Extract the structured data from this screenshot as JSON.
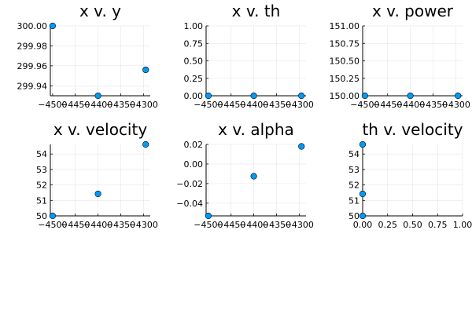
{
  "chart_data": [
    {
      "type": "scatter",
      "title": "x v. y",
      "x": [
        -4500,
        -4400,
        -4295
      ],
      "y": [
        300.0,
        299.93,
        299.956
      ],
      "xlim": [
        -4505,
        -4285
      ],
      "ylim": [
        299.93,
        300.0
      ],
      "xticks": [
        -4500,
        -4450,
        -4400,
        -4350,
        -4300
      ],
      "xtick_labels": [
        "−4500",
        "−4450",
        "−4400",
        "−4350",
        "−4300"
      ],
      "yticks": [
        299.94,
        299.96,
        299.98,
        300.0
      ],
      "ytick_labels": [
        "299.94",
        "299.96",
        "299.98",
        "300.00"
      ],
      "grid": true,
      "marker_color": "#009AFA"
    },
    {
      "type": "scatter",
      "title": "x v. th",
      "x": [
        -4500,
        -4400,
        -4295
      ],
      "y": [
        0,
        0,
        0
      ],
      "xlim": [
        -4505,
        -4285
      ],
      "ylim": [
        0,
        1.0
      ],
      "xticks": [
        -4500,
        -4450,
        -4400,
        -4350,
        -4300
      ],
      "xtick_labels": [
        "−4500",
        "−4450",
        "−4400",
        "−4350",
        "−4300"
      ],
      "yticks": [
        0,
        0.25,
        0.5,
        0.75,
        1.0
      ],
      "ytick_labels": [
        "0.00",
        "0.25",
        "0.50",
        "0.75",
        "1.00"
      ],
      "grid": true,
      "marker_color": "#009AFA"
    },
    {
      "type": "scatter",
      "title": "x v. power",
      "x": [
        -4500,
        -4400,
        -4295
      ],
      "y": [
        150,
        150,
        150
      ],
      "xlim": [
        -4505,
        -4285
      ],
      "ylim": [
        150,
        151
      ],
      "xticks": [
        -4500,
        -4450,
        -4400,
        -4350,
        -4300
      ],
      "xtick_labels": [
        "−4500",
        "−4450",
        "−4400",
        "−4350",
        "−4300"
      ],
      "yticks": [
        150.0,
        150.25,
        150.5,
        150.75,
        151.0
      ],
      "ytick_labels": [
        "150.00",
        "150.25",
        "150.50",
        "150.75",
        "151.00"
      ],
      "grid": true,
      "marker_color": "#009AFA"
    },
    {
      "type": "scatter",
      "title": "x v. velocity",
      "x": [
        -4500,
        -4400,
        -4295
      ],
      "y": [
        50.0,
        51.42,
        54.62
      ],
      "xlim": [
        -4505,
        -4285
      ],
      "ylim": [
        50.0,
        54.62
      ],
      "xticks": [
        -4500,
        -4450,
        -4400,
        -4350,
        -4300
      ],
      "xtick_labels": [
        "−4500",
        "−4450",
        "−4400",
        "−4350",
        "−4300"
      ],
      "yticks": [
        50,
        51,
        52,
        53,
        54
      ],
      "ytick_labels": [
        "50",
        "51",
        "52",
        "53",
        "54"
      ],
      "grid": true,
      "marker_color": "#009AFA"
    },
    {
      "type": "scatter",
      "title": "x v. alpha",
      "x": [
        -4500,
        -4400,
        -4295
      ],
      "y": [
        -0.053,
        -0.0125,
        0.018
      ],
      "xlim": [
        -4505,
        -4285
      ],
      "ylim": [
        -0.053,
        0.02
      ],
      "xticks": [
        -4500,
        -4450,
        -4400,
        -4350,
        -4300
      ],
      "xtick_labels": [
        "−4500",
        "−4450",
        "−4400",
        "−4350",
        "−4300"
      ],
      "yticks": [
        -0.04,
        -0.02,
        0.0,
        0.02
      ],
      "ytick_labels": [
        "−0.04",
        "−0.02",
        "0.00",
        "0.02"
      ],
      "grid": true,
      "marker_color": "#009AFA"
    },
    {
      "type": "scatter",
      "title": "th v. velocity",
      "x": [
        0,
        0,
        0
      ],
      "y": [
        50.0,
        51.42,
        54.62
      ],
      "xlim": [
        0,
        1.0
      ],
      "ylim": [
        50.0,
        54.62
      ],
      "xticks": [
        0,
        0.25,
        0.5,
        0.75,
        1.0
      ],
      "xtick_labels": [
        "0.00",
        "0.25",
        "0.50",
        "0.75",
        "1.00"
      ],
      "yticks": [
        50,
        51,
        52,
        53,
        54
      ],
      "ytick_labels": [
        "50",
        "51",
        "52",
        "53",
        "54"
      ],
      "grid": true,
      "marker_color": "#009AFA"
    }
  ]
}
